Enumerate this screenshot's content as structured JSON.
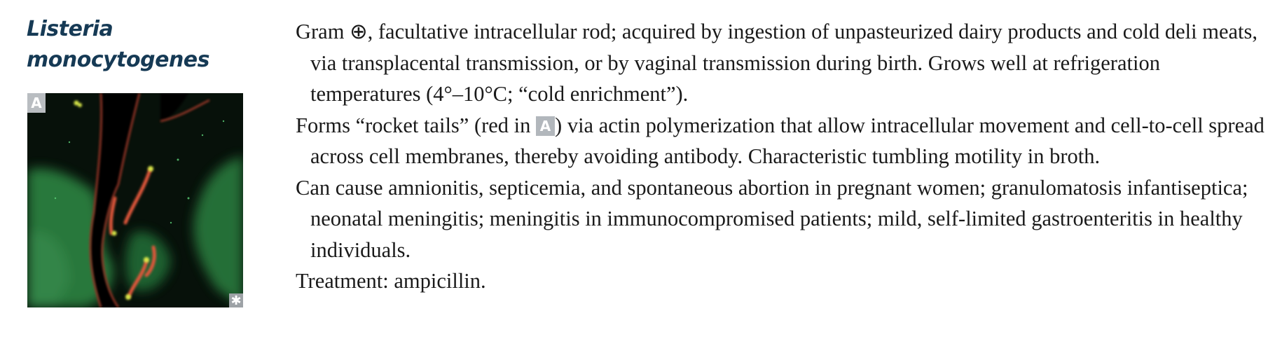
{
  "title_line1": "Listeria",
  "title_line2": "monocytogenes",
  "figure": {
    "label": "A",
    "copyright_mark": "✱"
  },
  "paragraphs": {
    "p1": "Gram ⊕, facultative intracellular rod; acquired by ingestion of unpasteurized dairy products and cold deli meats, via transplacental transmission, or by vaginal transmission during birth. Grows well at refrigeration temperatures (4°–10°C; “cold enrichment”).",
    "p2_before": "Forms “rocket tails” (red in ",
    "p2_badge": "A",
    "p2_after": ") via actin polymerization that allow intracellular movement and cell-to-cell spread across cell membranes, thereby avoiding antibody. Characteristic tumbling motility in broth.",
    "p3": "Can cause amnionitis, septicemia, and spontaneous abortion in pregnant women; granulomatosis infantiseptica; neonatal meningitis; meningitis in immunocompromised patients; mild, self-limited gastroenteritis in healthy individuals.",
    "p4": "Treatment: ampicillin."
  },
  "colors": {
    "title": "#163a55",
    "badge": "#b2b7bc"
  }
}
